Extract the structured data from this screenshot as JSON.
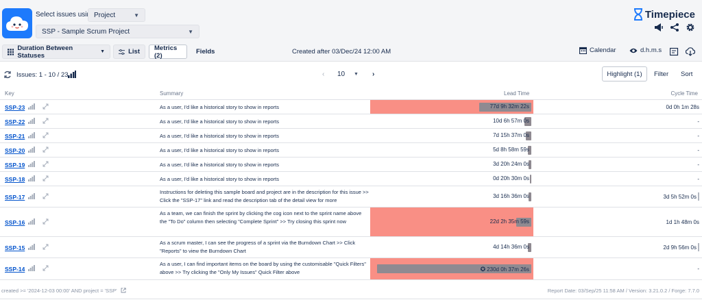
{
  "header": {
    "select_label": "Select issues using",
    "select_mode": "Project",
    "project": "SSP - Sample Scrum Project",
    "brand": "Timepiece",
    "icons": [
      "megaphone-icon",
      "share-icon",
      "gear-icon"
    ]
  },
  "toolbar": {
    "report_type": "Duration Between Statuses",
    "list_label": "List",
    "metrics_label": "Metrics (2)",
    "fields_label": "Fields",
    "filter_text": "Created after 03/Dec/24 12:00 AM",
    "calendar_label": "Calendar",
    "format_label": "d.h.m.s"
  },
  "pager": {
    "issues_label": "Issues: 1 - 10 / 23",
    "page_size": "10",
    "highlight_label": "Highlight (1)",
    "filter_label": "Filter",
    "sort_label": "Sort"
  },
  "table": {
    "headers": {
      "key": "Key",
      "summary": "Summary",
      "lead": "Lead Time",
      "cycle": "Cycle Time"
    },
    "rows": [
      {
        "key": "SSP-23",
        "summary": "As a user, I'd like a historical story to show in reports",
        "lead": "77d 9h 32m 22s",
        "lead_highlight": true,
        "lead_bar": 0.33,
        "cycle": "0d 0h 1m 28s",
        "cycle_tick": false,
        "flag": false
      },
      {
        "key": "SSP-22",
        "summary": "As a user, I'd like a historical story to show in reports",
        "lead": "10d 6h 57m 0s",
        "lead_highlight": false,
        "lead_bar": 0.045,
        "cycle": "-",
        "cycle_tick": false,
        "flag": false
      },
      {
        "key": "SSP-21",
        "summary": "As a user, I'd like a historical story to show in reports",
        "lead": "7d 15h 37m 0s",
        "lead_highlight": false,
        "lead_bar": 0.033,
        "cycle": "-",
        "cycle_tick": false,
        "flag": false
      },
      {
        "key": "SSP-20",
        "summary": "As a user, I'd like a historical story to show in reports",
        "lead": "5d 8h 58m 59s",
        "lead_highlight": false,
        "lead_bar": 0.023,
        "cycle": "-",
        "cycle_tick": false,
        "flag": false
      },
      {
        "key": "SSP-19",
        "summary": "As a user, I'd like a historical story to show in reports",
        "lead": "3d 20h 24m 0s",
        "lead_highlight": false,
        "lead_bar": 0.017,
        "cycle": "-",
        "cycle_tick": false,
        "flag": false
      },
      {
        "key": "SSP-18",
        "summary": "As a user, I'd like a historical story to show in reports",
        "lead": "0d 20h 30m 0s",
        "lead_highlight": false,
        "lead_bar": 0.004,
        "cycle": "-",
        "cycle_tick": false,
        "flag": false
      },
      {
        "key": "SSP-17",
        "summary": "Instructions for deleting this sample board and project are in the description for this issue >> Click the \"SSP-17\" link and read the description tab of the detail view for more",
        "lead": "3d 16h 36m 0s",
        "lead_highlight": false,
        "lead_bar": 0.016,
        "cycle": "3d 5h 52m 0s",
        "cycle_tick": true,
        "flag": false
      },
      {
        "key": "SSP-16",
        "summary": "As a team, we can finish the sprint by clicking the cog icon next to the sprint name above the \"To Do\" column then selecting \"Complete Sprint\" >> Try closing this sprint now",
        "lead": "22d 2h 35m 59s",
        "lead_highlight": true,
        "lead_bar": 0.095,
        "cycle": "1d 1h 48m 0s",
        "cycle_tick": false,
        "flag": false
      },
      {
        "key": "SSP-15",
        "summary": "As a scrum master, I can see the progress of a sprint via the Burndown Chart >> Click \"Reports\" to view the Burndown Chart",
        "lead": "4d 14h 36m 0s",
        "lead_highlight": false,
        "lead_bar": 0.02,
        "cycle": "2d 9h 56m 0s",
        "cycle_tick": true,
        "flag": false
      },
      {
        "key": "SSP-14",
        "summary": "As a user, I can find important items on the board by using the customisable \"Quick Filters\" above >> Try clicking the \"Only My Issues\" Quick Filter above",
        "lead": "230d 0h 37m 26s",
        "lead_highlight": true,
        "lead_bar": 0.98,
        "cycle": "-",
        "cycle_tick": false,
        "flag": true
      }
    ]
  },
  "footer": {
    "jql": "created >= '2024-12-03 00:00' AND project = 'SSP'",
    "report_info": "Report Date: 03/Sep/25 11:58 AM / Version: 3.21.0.2 / Forge: 7.7.0"
  },
  "colors": {
    "highlight": "#f98f85",
    "link": "#0052cc",
    "brand": "#1d7afc"
  }
}
